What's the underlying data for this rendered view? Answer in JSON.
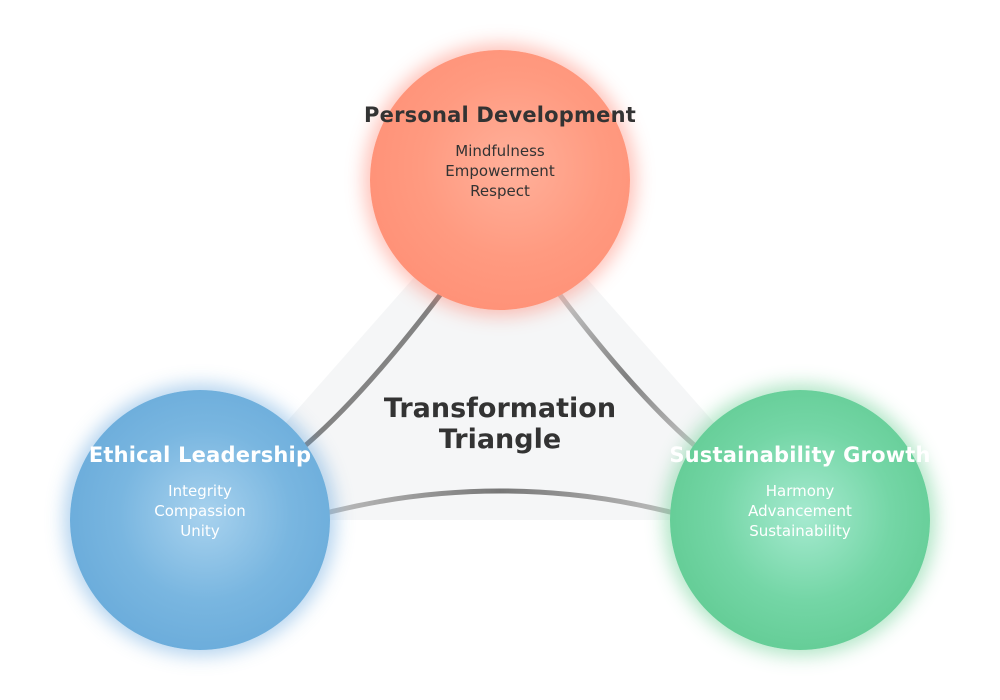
{
  "center_title": {
    "line1": "Transformation",
    "line2": "Triangle"
  },
  "nodes": {
    "personal": {
      "title": "Personal Development",
      "items": [
        "Mindfulness",
        "Empowerment",
        "Respect"
      ],
      "color": "#ff8a70"
    },
    "ethical": {
      "title": "Ethical Leadership",
      "items": [
        "Integrity",
        "Compassion",
        "Unity"
      ],
      "color": "#5ea3d6"
    },
    "sustainability": {
      "title": "Sustainability Growth",
      "items": [
        "Harmony",
        "Advancement",
        "Sustainability"
      ],
      "color": "#55c487"
    }
  },
  "connector_color": "#888888",
  "triangle_fill": "#f1f3f4"
}
